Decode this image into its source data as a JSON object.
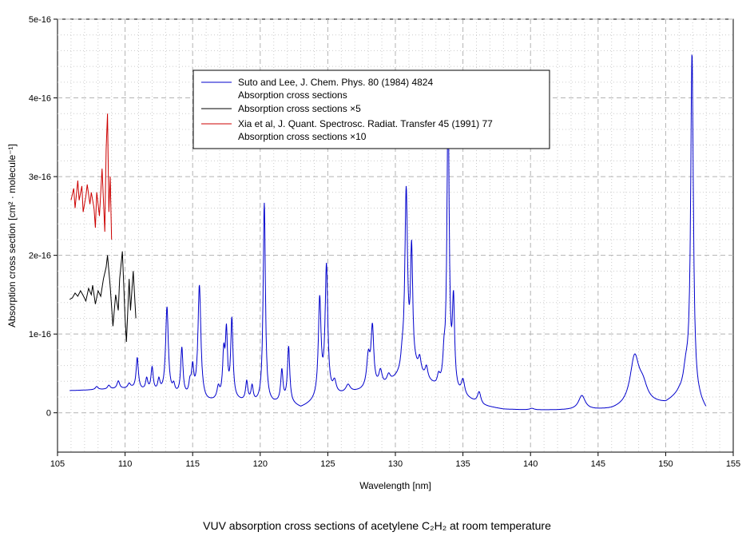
{
  "chart_data": {
    "type": "line",
    "xlabel": "Wavelength [nm]",
    "ylabel": "Absorption cross section [cm² · molecule⁻¹]",
    "xlim": [
      105,
      155
    ],
    "ylim": [
      -5e-17,
      5e-16
    ],
    "x_ticks": [
      105,
      110,
      115,
      120,
      125,
      130,
      135,
      140,
      145,
      150,
      155
    ],
    "y_ticks": [
      0,
      1e-16,
      2e-16,
      3e-16,
      4e-16,
      5e-16
    ],
    "y_tick_labels": [
      "0",
      "1e-16",
      "2e-16",
      "3e-16",
      "4e-16",
      "5e-16"
    ],
    "grid": true,
    "legend_position": "top-center",
    "series": [
      {
        "name": "Suto and Lee, J. Chem. Phys. 80 (1984) 4824",
        "subname": "Absorption cross sections",
        "color": "#0000cc",
        "base_points": [
          [
            105.9,
            2.8e-17
          ],
          [
            108,
            2.9e-17
          ],
          [
            110.5,
            3e-17
          ],
          [
            112,
            2.5e-17
          ],
          [
            114,
            2e-17
          ],
          [
            116,
            1.2e-17
          ],
          [
            118,
            1.5e-17
          ],
          [
            119.5,
            1e-17
          ],
          [
            121,
            1e-17
          ],
          [
            122,
            1.2e-17
          ],
          [
            123,
            5e-18
          ],
          [
            124,
            1.2e-17
          ],
          [
            125.5,
            2e-17
          ],
          [
            127,
            2.5e-17
          ],
          [
            129,
            3e-17
          ],
          [
            130,
            4e-17
          ],
          [
            131.5,
            5e-17
          ],
          [
            133,
            3e-17
          ],
          [
            134.5,
            2e-17
          ],
          [
            135.5,
            1.5e-17
          ],
          [
            136.5,
            8e-18
          ],
          [
            138,
            4e-18
          ],
          [
            140,
            3e-18
          ],
          [
            142,
            3e-18
          ],
          [
            144,
            3e-18
          ],
          [
            146,
            3e-18
          ],
          [
            148.5,
            1e-17
          ],
          [
            150,
            1e-17
          ],
          [
            151,
            2e-17
          ],
          [
            152.5,
            1e-17
          ],
          [
            153,
            1e-18
          ]
        ],
        "peaks": [
          [
            107.9,
            4e-18,
            0.12
          ],
          [
            108.8,
            5e-18,
            0.12
          ],
          [
            109.5,
            1e-17,
            0.12
          ],
          [
            110.3,
            6e-18,
            0.12
          ],
          [
            110.9,
            4e-17,
            0.1
          ],
          [
            111.6,
            1.5e-17,
            0.1
          ],
          [
            112.0,
            3e-17,
            0.1
          ],
          [
            112.5,
            1.5e-17,
            0.1
          ],
          [
            113.1,
            1.1e-16,
            0.12
          ],
          [
            113.6,
            1e-17,
            0.1
          ],
          [
            114.2,
            6e-17,
            0.1
          ],
          [
            114.8,
            1.5e-17,
            0.1
          ],
          [
            115.0,
            3.5e-17,
            0.1
          ],
          [
            115.5,
            1.45e-16,
            0.13
          ],
          [
            116.9,
            1.5e-17,
            0.12
          ],
          [
            117.3,
            5.5e-17,
            0.1
          ],
          [
            117.5,
            8e-17,
            0.09
          ],
          [
            117.9,
            1e-16,
            0.1
          ],
          [
            119.0,
            2.5e-17,
            0.1
          ],
          [
            119.4,
            2e-17,
            0.1
          ],
          [
            120.3,
            2.55e-16,
            0.1
          ],
          [
            121.6,
            4e-17,
            0.1
          ],
          [
            122.1,
            7e-17,
            0.1
          ],
          [
            124.4,
            1.25e-16,
            0.12
          ],
          [
            124.9,
            1.65e-16,
            0.12
          ],
          [
            125.5,
            1.5e-17,
            0.15
          ],
          [
            126.5,
            1e-17,
            0.2
          ],
          [
            128.0,
            4e-17,
            0.15
          ],
          [
            128.3,
            7.5e-17,
            0.12
          ],
          [
            128.9,
            2e-17,
            0.15
          ],
          [
            129.5,
            1e-17,
            0.15
          ],
          [
            130.5,
            1.5e-17,
            0.12
          ],
          [
            130.8,
            2.3e-16,
            0.12
          ],
          [
            131.2,
            1.5e-16,
            0.1
          ],
          [
            131.8,
            1.8e-17,
            0.12
          ],
          [
            132.3,
            1.5e-17,
            0.12
          ],
          [
            133.2,
            1.2e-17,
            0.12
          ],
          [
            133.6,
            3e-17,
            0.1
          ],
          [
            133.9,
            3.7e-16,
            0.1
          ],
          [
            134.3,
            1.1e-16,
            0.1
          ],
          [
            135.0,
            2e-17,
            0.15
          ],
          [
            136.2,
            1.5e-17,
            0.15
          ],
          [
            140.1,
            2e-18,
            0.2
          ],
          [
            143.8,
            1.8e-17,
            0.3
          ],
          [
            147.7,
            6e-17,
            0.4
          ],
          [
            148.3,
            2e-17,
            0.4
          ],
          [
            151.5,
            3e-17,
            0.25
          ],
          [
            151.95,
            4.35e-16,
            0.12
          ]
        ]
      },
      {
        "name": "Absorption cross sections ×5",
        "color": "#000000",
        "points": [
          [
            105.9,
            1.44e-16
          ],
          [
            106.1,
            1.46e-16
          ],
          [
            106.3,
            1.52e-16
          ],
          [
            106.5,
            1.48e-16
          ],
          [
            106.7,
            1.55e-16
          ],
          [
            106.9,
            1.49e-16
          ],
          [
            107.1,
            1.42e-16
          ],
          [
            107.3,
            1.58e-16
          ],
          [
            107.5,
            1.5e-16
          ],
          [
            107.6,
            1.62e-16
          ],
          [
            107.8,
            1.38e-16
          ],
          [
            108.0,
            1.55e-16
          ],
          [
            108.2,
            1.48e-16
          ],
          [
            108.4,
            1.7e-16
          ],
          [
            108.6,
            1.85e-16
          ],
          [
            108.7,
            2e-16
          ],
          [
            108.9,
            1.6e-16
          ],
          [
            109.1,
            1.1e-16
          ],
          [
            109.3,
            1.5e-16
          ],
          [
            109.5,
            1.3e-16
          ],
          [
            109.6,
            1.7e-16
          ],
          [
            109.8,
            2.05e-16
          ],
          [
            110.0,
            1.2e-16
          ],
          [
            110.1,
            9e-17
          ],
          [
            110.3,
            1.7e-16
          ],
          [
            110.4,
            1.3e-16
          ],
          [
            110.6,
            1.8e-16
          ],
          [
            110.8,
            1.2e-16
          ]
        ]
      },
      {
        "name": "Xia et al, J. Quant. Spectrosc. Radiat. Transfer 45 (1991) 77",
        "subname": "Absorption cross sections ×10",
        "color": "#cc0000",
        "points": [
          [
            106.0,
            2.7e-16
          ],
          [
            106.2,
            2.85e-16
          ],
          [
            106.3,
            2.6e-16
          ],
          [
            106.5,
            2.95e-16
          ],
          [
            106.6,
            2.7e-16
          ],
          [
            106.8,
            2.88e-16
          ],
          [
            106.9,
            2.55e-16
          ],
          [
            107.1,
            2.75e-16
          ],
          [
            107.2,
            2.9e-16
          ],
          [
            107.4,
            2.65e-16
          ],
          [
            107.5,
            2.8e-16
          ],
          [
            107.7,
            2.6e-16
          ],
          [
            107.8,
            2.35e-16
          ],
          [
            107.9,
            2.8e-16
          ],
          [
            108.1,
            2.5e-16
          ],
          [
            108.3,
            3.1e-16
          ],
          [
            108.4,
            2.7e-16
          ],
          [
            108.5,
            2.3e-16
          ],
          [
            108.6,
            3.35e-16
          ],
          [
            108.7,
            3.8e-16
          ],
          [
            108.8,
            2.55e-16
          ],
          [
            108.9,
            3e-16
          ],
          [
            109.0,
            2.2e-16
          ]
        ]
      }
    ],
    "caption": "VUV absorption cross sections of acetylene C₂H₂ at room temperature"
  }
}
